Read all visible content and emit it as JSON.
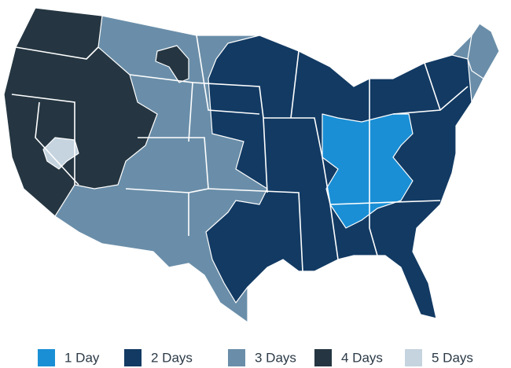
{
  "legend": [
    {
      "label": "1 Day",
      "color": "#1a8fd5"
    },
    {
      "label": "2 Days",
      "color": "#123a63"
    },
    {
      "label": "3 Days",
      "color": "#6a8ea9"
    },
    {
      "label": "4 Days",
      "color": "#253642"
    },
    {
      "label": "5 Days",
      "color": "#c5d4df"
    }
  ]
}
